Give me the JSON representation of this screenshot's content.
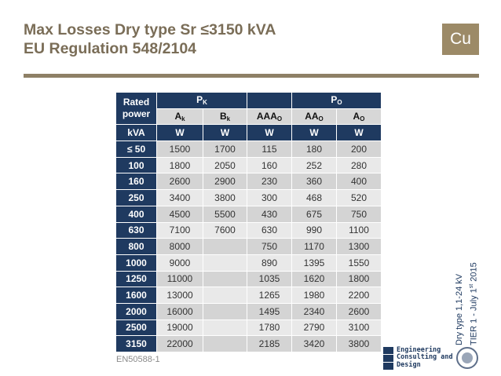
{
  "header": {
    "title_line1": "Max Losses Dry type Sr ≤3150 kVA",
    "title_line2": "EU Regulation 548/2104",
    "badge": "Cu"
  },
  "table": {
    "head": {
      "rated_line1": "Rated",
      "rated_line2": "power",
      "pk": "P",
      "pk_sub": "K",
      "po": "P",
      "po_sub": "O",
      "ak": "A",
      "ak_sub": "k",
      "bk": "B",
      "bk_sub": "k",
      "aaao": "AAA",
      "aaao_sub": "O",
      "aao": "AA",
      "aao_sub": "O",
      "ao": "A",
      "ao_sub": "O"
    },
    "units": [
      "kVA",
      "W",
      "W",
      "W",
      "W",
      "W"
    ],
    "rows": [
      {
        "power": "≤ 50",
        "ak": "1500",
        "bk": "1700",
        "aaao": "115",
        "aao": "180",
        "ao": "200"
      },
      {
        "power": "100",
        "ak": "1800",
        "bk": "2050",
        "aaao": "160",
        "aao": "252",
        "ao": "280"
      },
      {
        "power": "160",
        "ak": "2600",
        "bk": "2900",
        "aaao": "230",
        "aao": "360",
        "ao": "400"
      },
      {
        "power": "250",
        "ak": "3400",
        "bk": "3800",
        "aaao": "300",
        "aao": "468",
        "ao": "520"
      },
      {
        "power": "400",
        "ak": "4500",
        "bk": "5500",
        "aaao": "430",
        "aao": "675",
        "ao": "750"
      },
      {
        "power": "630",
        "ak": "7100",
        "bk": "7600",
        "aaao": "630",
        "aao": "990",
        "ao": "1100"
      },
      {
        "power": "800",
        "ak": "8000",
        "bk": "",
        "aaao": "750",
        "aao": "1170",
        "ao": "1300"
      },
      {
        "power": "1000",
        "ak": "9000",
        "bk": "",
        "aaao": "890",
        "aao": "1395",
        "ao": "1550"
      },
      {
        "power": "1250",
        "ak": "11000",
        "bk": "",
        "aaao": "1035",
        "aao": "1620",
        "ao": "1800"
      },
      {
        "power": "1600",
        "ak": "13000",
        "bk": "",
        "aaao": "1265",
        "aao": "1980",
        "ao": "2200"
      },
      {
        "power": "2000",
        "ak": "16000",
        "bk": "",
        "aaao": "1495",
        "aao": "2340",
        "ao": "2600"
      },
      {
        "power": "2500",
        "ak": "19000",
        "bk": "",
        "aaao": "1780",
        "aao": "2790",
        "ao": "3100"
      },
      {
        "power": "3150",
        "ak": "22000",
        "bk": "",
        "aaao": "2185",
        "aao": "3420",
        "ao": "3800"
      }
    ]
  },
  "footer": {
    "standard": "EN50588-1",
    "side_line1": "Dry type 1,1-24 kV",
    "side_line2_a": "TIER 1  - July 1",
    "side_line2_sup": "st",
    "side_line2_b": " 2015",
    "logo_line1": "Engineering",
    "logo_line2": "Consulting and",
    "logo_line3": "Design"
  },
  "colors": {
    "header_navy": "#1f3a60",
    "title_brown": "#7a6d57",
    "badge_tan": "#9c8a67"
  }
}
